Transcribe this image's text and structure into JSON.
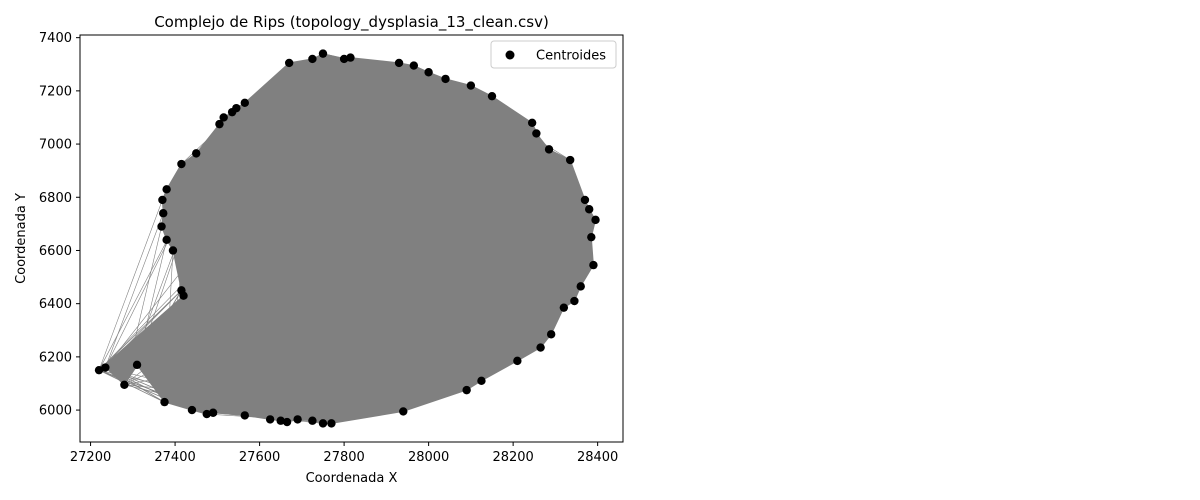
{
  "chart_data": {
    "type": "scatter",
    "title": "Complejo de Rips (topology_dysplasia_13_clean.csv)",
    "xlabel": "Coordenada X",
    "ylabel": "Coordenada Y",
    "xlim": [
      27175,
      28460
    ],
    "ylim": [
      5880,
      7410
    ],
    "xticks": [
      27200,
      27400,
      27600,
      27800,
      28000,
      28200,
      28400
    ],
    "yticks": [
      6000,
      6200,
      6400,
      6600,
      6800,
      7000,
      7200,
      7400
    ],
    "legend": {
      "label": "Centroides",
      "position": "top-right"
    },
    "colors": {
      "points": "#000000",
      "edges": "#808080",
      "fill": "#808080"
    },
    "series": [
      {
        "name": "Centroides",
        "x": [
          27220,
          27235,
          27280,
          27310,
          27375,
          27440,
          27475,
          27490,
          27565,
          27625,
          27650,
          27665,
          27690,
          27725,
          27750,
          27770,
          27940,
          28090,
          28125,
          28210,
          28265,
          28290,
          28320,
          28345,
          28360,
          28390,
          28385,
          28395,
          28380,
          28370,
          28335,
          28285,
          28255,
          28245,
          28150,
          28100,
          28040,
          28000,
          27965,
          27930,
          27815,
          27800,
          27750,
          27725,
          27670,
          27565,
          27545,
          27535,
          27515,
          27505,
          27450,
          27415,
          27380,
          27370,
          27372,
          27368,
          27380,
          27395,
          27415,
          27420
        ],
        "y": [
          6150,
          6160,
          6095,
          6170,
          6030,
          6000,
          5985,
          5990,
          5980,
          5965,
          5960,
          5955,
          5965,
          5960,
          5950,
          5950,
          5995,
          6075,
          6110,
          6185,
          6235,
          6285,
          6385,
          6410,
          6465,
          6545,
          6650,
          6715,
          6755,
          6790,
          6940,
          6980,
          7040,
          7080,
          7180,
          7220,
          7245,
          7270,
          7295,
          7305,
          7325,
          7320,
          7340,
          7320,
          7305,
          7155,
          7135,
          7120,
          7100,
          7075,
          6965,
          6925,
          6830,
          6790,
          6740,
          6690,
          6640,
          6600,
          6450,
          6430
        ]
      }
    ]
  }
}
